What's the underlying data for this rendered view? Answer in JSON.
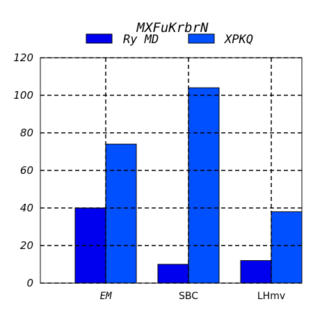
{
  "chart_data": {
    "type": "bar",
    "title": "MXFuKrbrN",
    "xlabel": "",
    "ylabel": "",
    "categories": [
      "EM",
      "SBC",
      "LHmv"
    ],
    "series": [
      {
        "name": "Ry MD",
        "values": [
          40,
          10,
          12
        ],
        "color": "#0000ee"
      },
      {
        "name": "XPKQ",
        "values": [
          74,
          104,
          38
        ],
        "color": "#0050ff"
      }
    ],
    "ylim": [
      0,
      120
    ],
    "yticks": [
      0,
      20,
      40,
      60,
      80,
      100,
      120
    ],
    "grid": true,
    "legend_position": "top-center"
  }
}
